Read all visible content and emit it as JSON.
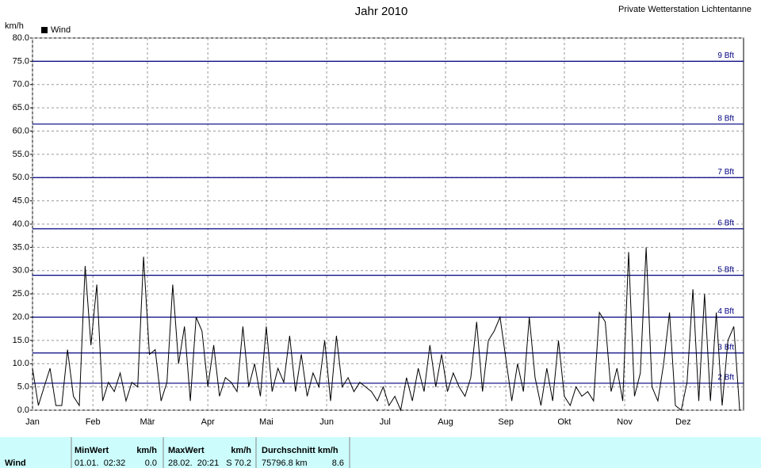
{
  "chart_data": {
    "type": "line",
    "title": "Jahr 2010",
    "subtitle": "Private Wetterstation Lichtentanne",
    "y_label": "km/h",
    "legend": "top-left",
    "xlim": [
      0,
      365
    ],
    "xticks": [
      {
        "value": 0,
        "label": "Jan"
      },
      {
        "value": 31,
        "label": "Feb"
      },
      {
        "value": 59,
        "label": "Mär"
      },
      {
        "value": 90,
        "label": "Apr"
      },
      {
        "value": 120,
        "label": "Mai"
      },
      {
        "value": 151,
        "label": "Jun"
      },
      {
        "value": 181,
        "label": "Jul"
      },
      {
        "value": 212,
        "label": "Aug"
      },
      {
        "value": 243,
        "label": "Sep"
      },
      {
        "value": 273,
        "label": "Okt"
      },
      {
        "value": 304,
        "label": "Nov"
      },
      {
        "value": 334,
        "label": "Dez"
      }
    ],
    "ylim": [
      0,
      80
    ],
    "yticks": [
      {
        "value": 0,
        "label": "0.0"
      },
      {
        "value": 5,
        "label": "5.0"
      },
      {
        "value": 10,
        "label": "10.0"
      },
      {
        "value": 15,
        "label": "15.0"
      },
      {
        "value": 20,
        "label": "20.0"
      },
      {
        "value": 25,
        "label": "25.0"
      },
      {
        "value": 30,
        "label": "30.0"
      },
      {
        "value": 35,
        "label": "35.0"
      },
      {
        "value": 40,
        "label": "40.0"
      },
      {
        "value": 45,
        "label": "45.0"
      },
      {
        "value": 50,
        "label": "50.0"
      },
      {
        "value": 55,
        "label": "55.0"
      },
      {
        "value": 60,
        "label": "60.0"
      },
      {
        "value": 65,
        "label": "65.0"
      },
      {
        "value": 70,
        "label": "70.0"
      },
      {
        "value": 75,
        "label": "75.0"
      },
      {
        "value": 80,
        "label": "80.0"
      }
    ],
    "grid": true,
    "reference_lines": [
      {
        "value": 75,
        "label": "9 Bft"
      },
      {
        "value": 61.5,
        "label": "8 Bft"
      },
      {
        "value": 50,
        "label": "7 Bft"
      },
      {
        "value": 39,
        "label": "6 Bft"
      },
      {
        "value": 29,
        "label": "5 Bft"
      },
      {
        "value": 20,
        "label": "4 Bft"
      },
      {
        "value": 12.3,
        "label": "3 Bft"
      },
      {
        "value": 5.8,
        "label": "2 Bft"
      }
    ],
    "reference_color": "#000080",
    "x": [
      0,
      3,
      6,
      9,
      12,
      15,
      18,
      21,
      24,
      27,
      30,
      33,
      36,
      39,
      42,
      45,
      48,
      51,
      54,
      57,
      60,
      63,
      66,
      69,
      72,
      75,
      78,
      81,
      84,
      87,
      90,
      93,
      96,
      99,
      102,
      105,
      108,
      111,
      114,
      117,
      120,
      123,
      126,
      129,
      132,
      135,
      138,
      141,
      144,
      147,
      150,
      153,
      156,
      159,
      162,
      165,
      168,
      171,
      174,
      177,
      180,
      183,
      186,
      189,
      192,
      195,
      198,
      201,
      204,
      207,
      210,
      213,
      216,
      219,
      222,
      225,
      228,
      231,
      234,
      237,
      240,
      243,
      246,
      249,
      252,
      255,
      258,
      261,
      264,
      267,
      270,
      273,
      276,
      279,
      282,
      285,
      288,
      291,
      294,
      297,
      300,
      303,
      306,
      309,
      312,
      315,
      318,
      321,
      324,
      327,
      330,
      333,
      336,
      339,
      342,
      345,
      348,
      351,
      354,
      357,
      360,
      363
    ],
    "series": [
      {
        "name": "Wind",
        "color": "#000000",
        "values": [
          9,
          1,
          5,
          9,
          1,
          1,
          13,
          3,
          1,
          31,
          14,
          27,
          2,
          6,
          4,
          8,
          2,
          6,
          5,
          33,
          12,
          13,
          2,
          6,
          27,
          10,
          18,
          2,
          20,
          17,
          5,
          14,
          3,
          7,
          6,
          4,
          18,
          5,
          10,
          3,
          18,
          4,
          9,
          6,
          16,
          4,
          12,
          3,
          8,
          5,
          15,
          2,
          16,
          5,
          7,
          4,
          6,
          5,
          4,
          2,
          5,
          1,
          3,
          0,
          7,
          2,
          9,
          4,
          14,
          5,
          12,
          4,
          8,
          5,
          3,
          7,
          19,
          4,
          15,
          17,
          20,
          11,
          2,
          10,
          4,
          20,
          7,
          1,
          9,
          2,
          15,
          3,
          1,
          5,
          3,
          4,
          2,
          21,
          19,
          4,
          9,
          2,
          34,
          3,
          8,
          35,
          5,
          2,
          10,
          21,
          1,
          0,
          6,
          26,
          2,
          25,
          2,
          21,
          1,
          15,
          18,
          0
        ]
      }
    ]
  },
  "table": {
    "header": [
      "MinWert",
      "km/h",
      "MaxWert",
      "km/h",
      "Durchschnitt km/h"
    ],
    "rows": [
      [
        "Wind",
        "01.01.  02:32",
        "0.0",
        "28.02.  20:21",
        "S 70.2",
        "75796.8 km",
        "8.6"
      ]
    ]
  }
}
